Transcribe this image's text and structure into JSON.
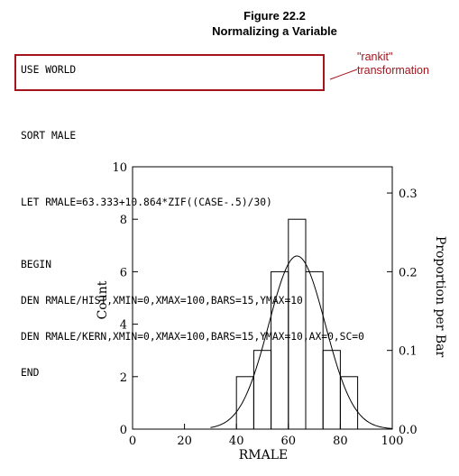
{
  "figure": {
    "number": "Figure 22.2",
    "title": "Normalizing a Variable"
  },
  "code_lines": [
    "USE WORLD",
    "SORT MALE",
    "LET RMALE=63.333+10.864*ZIF((CASE-.5)/30)",
    "BEGIN",
    "DEN RMALE/HIST,XMIN=0,XMAX=100,BARS=15,YMAX=10",
    "DEN RMALE/KERN,XMIN=0,XMAX=100,BARS=15,YMAX=10,AX=0,SC=0",
    "END"
  ],
  "annotation": {
    "line1": "\"rankit\"",
    "line2": "transformation",
    "color": "#a4141c"
  },
  "chart_data": {
    "type": "histogram",
    "xlabel": "RMALE",
    "ylabel": "Count",
    "y2label": "Proportion per Bar",
    "xlim": [
      0,
      100
    ],
    "ylim": [
      0,
      10
    ],
    "y2lim": [
      0,
      0.3333
    ],
    "xticks": [
      0,
      20,
      40,
      60,
      80,
      100
    ],
    "yticks": [
      0,
      2,
      4,
      6,
      8,
      10
    ],
    "y2ticks": [
      0.0,
      0.1,
      0.2,
      0.3
    ],
    "y2tick_labels": [
      "0.0",
      "0.1",
      "0.2",
      "0.3"
    ],
    "grid": false,
    "bin_width": 6.6667,
    "bars": [
      {
        "x0": 40.0,
        "x1": 46.667,
        "count": 2
      },
      {
        "x0": 46.667,
        "x1": 53.333,
        "count": 3
      },
      {
        "x0": 53.333,
        "x1": 60.0,
        "count": 6
      },
      {
        "x0": 60.0,
        "x1": 66.667,
        "count": 8
      },
      {
        "x0": 66.667,
        "x1": 73.333,
        "count": 6
      },
      {
        "x0": 73.333,
        "x1": 80.0,
        "count": 3
      },
      {
        "x0": 80.0,
        "x1": 86.667,
        "count": 2
      }
    ],
    "density_curve": {
      "type": "normal-kernel",
      "mean": 63.333,
      "sd": 10.864,
      "peak_count": 6.6,
      "x_range": [
        30,
        100
      ]
    }
  }
}
